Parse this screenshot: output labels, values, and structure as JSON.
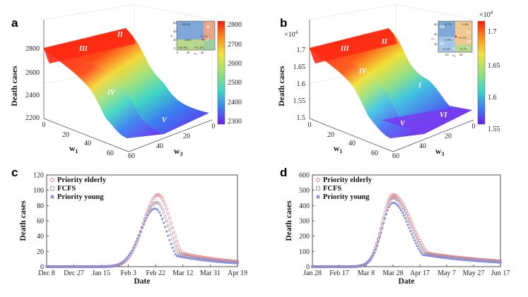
{
  "panels": {
    "a": {
      "label": "a"
    },
    "b": {
      "label": "b"
    },
    "c": {
      "label": "c"
    },
    "d": {
      "label": "d"
    }
  },
  "surface_a": {
    "z_axis_label": "Death cases",
    "z_ticks": [
      "2200",
      "2400",
      "2600",
      "2800"
    ],
    "w1_label": "w",
    "w1_sub": "1",
    "w3_label": "w",
    "w3_sub": "3",
    "w1_ticks": [
      "0",
      "20",
      "40",
      "60"
    ],
    "w3_ticks": [
      "60",
      "40",
      "20",
      "0"
    ],
    "colorbar_ticks": [
      "2800",
      "2700",
      "2600",
      "2500",
      "2400",
      "2300"
    ],
    "regions": [
      "III",
      "II",
      "I",
      "IV",
      "V"
    ],
    "inset": {
      "axis_y": "w₁",
      "axis_x": "w₃",
      "ticks_y": [
        "60",
        "40",
        "20",
        "0"
      ],
      "ticks_x": [
        "0",
        "20",
        "40"
      ],
      "annotations": [
        "-39.4%",
        "-4.6%",
        "+5.1%",
        "+16.5%",
        "+31.2%"
      ],
      "regions": [
        "III",
        "IV",
        "V",
        "I",
        "II"
      ]
    }
  },
  "surface_b": {
    "z_axis_label": "Death cases",
    "z_multiplier": "×10",
    "z_multiplier_exp": "4",
    "z_ticks": [
      "1.5",
      "1.55",
      "1.6",
      "1.65",
      "1.7"
    ],
    "w1_label": "w",
    "w1_sub": "1",
    "w3_label": "w",
    "w3_sub": "3",
    "w1_ticks": [
      "0",
      "20",
      "40",
      "60"
    ],
    "w3_ticks": [
      "60",
      "40",
      "20",
      "0"
    ],
    "colorbar_multiplier": "×10",
    "colorbar_multiplier_exp": "4",
    "colorbar_ticks": [
      "1.7",
      "1.65",
      "1.6",
      "1.55"
    ],
    "regions": [
      "III",
      "II",
      "IV",
      "I",
      "VI",
      "V"
    ],
    "inset": {
      "axis_y": "w₁",
      "axis_x": "w₃",
      "ticks_y": [
        "60",
        "40",
        "20"
      ],
      "ticks_x": [
        "20",
        "40"
      ],
      "annotations": [
        "-6.7%",
        "-5.3%",
        "-3.5%",
        "+4.1%",
        "+5.1%",
        "+1.7%"
      ],
      "regions": [
        "III",
        "II",
        "IV",
        "VI",
        "I",
        "V"
      ]
    }
  },
  "chart_data": [
    {
      "type": "scatter",
      "panel": "c",
      "title": "",
      "xlabel": "Date",
      "ylabel": "Death cases",
      "ylim": [
        0,
        120
      ],
      "yticks": [
        "0",
        "20",
        "40",
        "60",
        "80",
        "100",
        "120"
      ],
      "xtick_labels": [
        "Dec 8",
        "Dec 27",
        "Jan 15",
        "Feb 3",
        "Feb 22",
        "Mar 12",
        "Mar 31",
        "Apr 19"
      ],
      "x_range_days": [
        0,
        132
      ],
      "legend": [
        "Priority elderly",
        "FCFS",
        "Priority young"
      ],
      "series": [
        {
          "name": "Priority elderly",
          "color": "#e8707a",
          "marker": "circle",
          "peak_day": 77,
          "peak": 94,
          "width_left": 10,
          "width_right": 9
        },
        {
          "name": "FCFS",
          "color": "#9a8a96",
          "marker": "square",
          "peak_day": 76,
          "peak": 84,
          "width_left": 10,
          "width_right": 8.5
        },
        {
          "name": "Priority young",
          "color": "#8a8fe0",
          "marker": "square",
          "peak_day": 75,
          "peak": 76,
          "width_left": 10,
          "width_right": 8
        }
      ]
    },
    {
      "type": "scatter",
      "panel": "d",
      "title": "",
      "xlabel": "Date",
      "ylabel": "Death cases",
      "ylim": [
        0,
        600
      ],
      "yticks": [
        "0",
        "100",
        "200",
        "300",
        "400",
        "500",
        "600"
      ],
      "xtick_labels": [
        "Jan 28",
        "Feb 17",
        "Mar 8",
        "Mar 28",
        "Apr 17",
        "May 7",
        "May 27",
        "Jun 17"
      ],
      "x_range_days": [
        0,
        140
      ],
      "legend": [
        "Priority elderly",
        "FCFS",
        "Priority young"
      ],
      "series": [
        {
          "name": "Priority elderly",
          "color": "#e8707a",
          "marker": "circle",
          "peak_day": 60,
          "peak": 470,
          "width_left": 8,
          "width_right": 14
        },
        {
          "name": "FCFS",
          "color": "#9a8a96",
          "marker": "square",
          "peak_day": 60,
          "peak": 450,
          "width_left": 8,
          "width_right": 13
        },
        {
          "name": "Priority young",
          "color": "#8a8fe0",
          "marker": "square",
          "peak_day": 60,
          "peak": 418,
          "width_left": 8,
          "width_right": 12
        }
      ]
    }
  ]
}
